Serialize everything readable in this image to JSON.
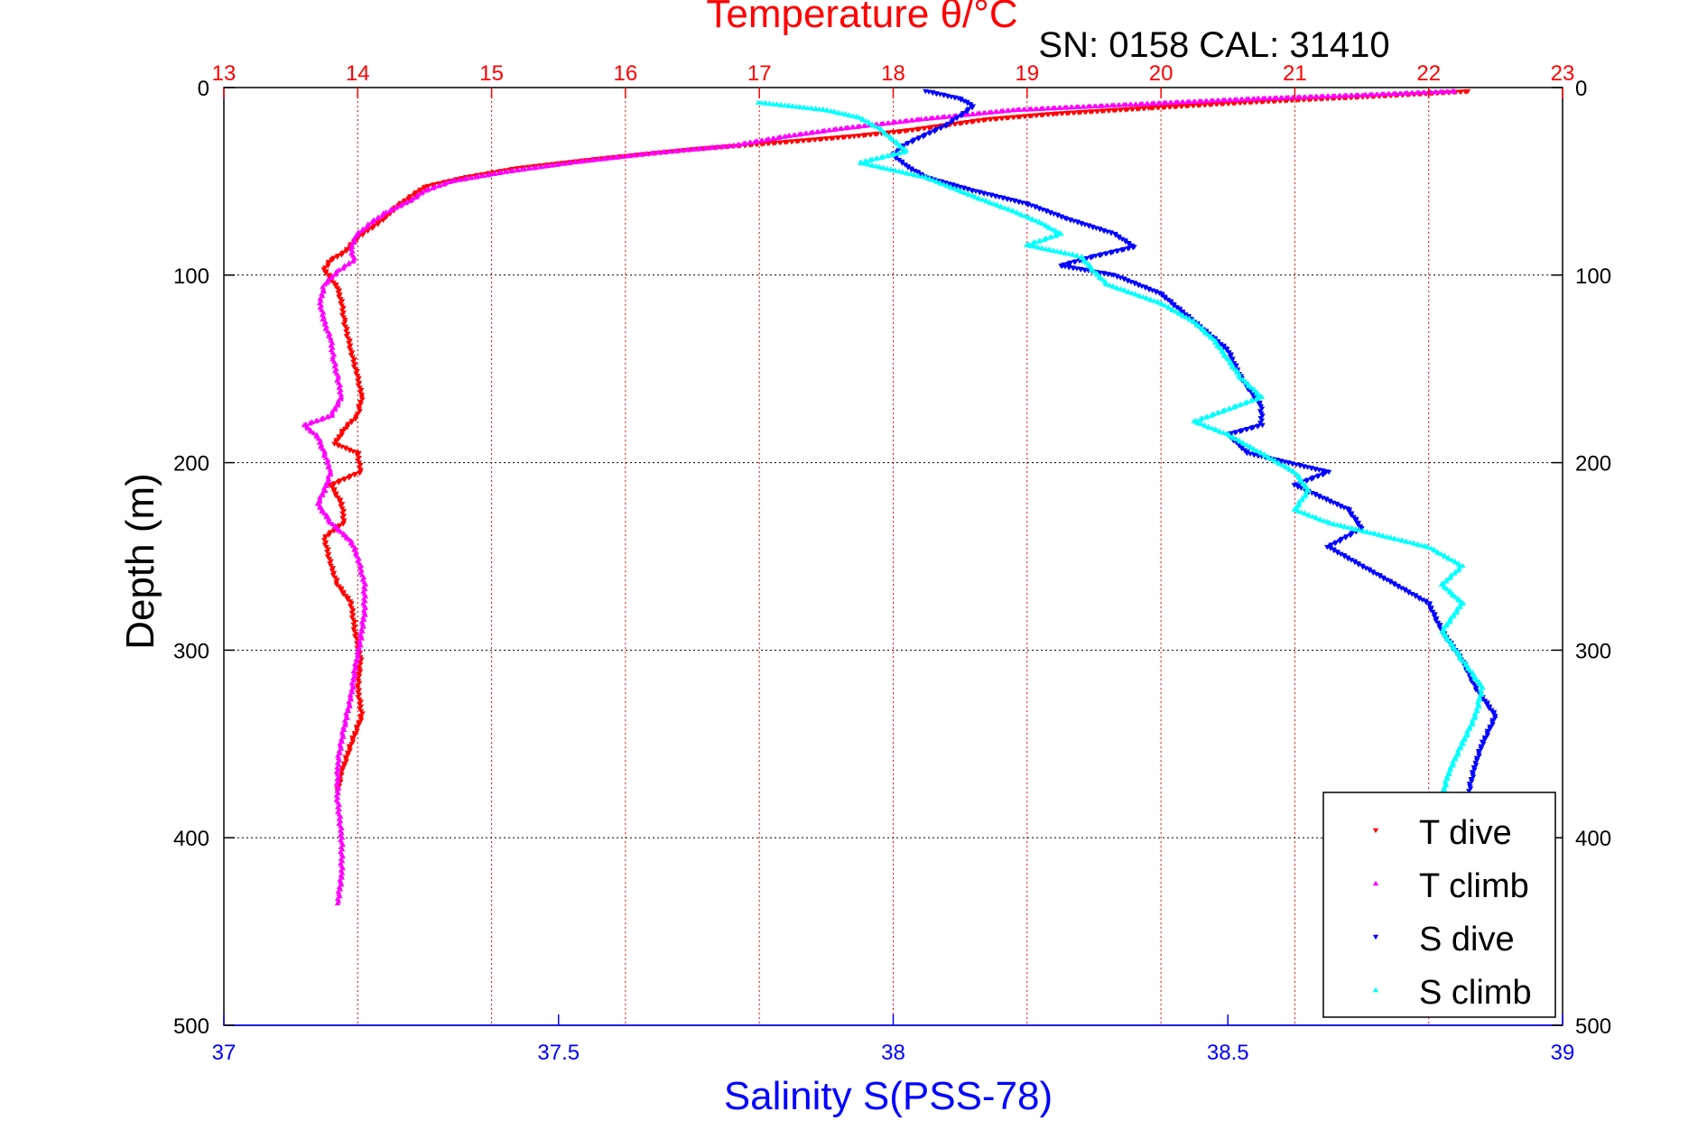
{
  "chart_data": {
    "type": "scatter",
    "title": "Temperature θ/°C",
    "subtitle": "SN: 0158  CAL: 31410",
    "ylabel": "Depth (m)",
    "xlabel": "Salinity S(PSS-78)",
    "x_top": {
      "label": "Temperature θ/°C",
      "lim": [
        13,
        23
      ],
      "ticks": [
        "13",
        "14",
        "15",
        "16",
        "17",
        "18",
        "19",
        "20",
        "21",
        "22",
        "23"
      ],
      "color": "#ff0000"
    },
    "x_bottom": {
      "label": "Salinity S(PSS-78)",
      "lim": [
        37,
        39
      ],
      "ticks": [
        "37",
        "37.5",
        "38",
        "38.5",
        "39"
      ],
      "color": "#0000ff"
    },
    "ylim": [
      0,
      500
    ],
    "y_reversed": true,
    "y_ticks": [
      "0",
      "100",
      "200",
      "300",
      "400",
      "500"
    ],
    "grid": true,
    "legend_position": "bottom-right",
    "series": [
      {
        "name": "T dive",
        "axis": "temperature",
        "color": "#ff0000",
        "marker": "▾",
        "points": [
          [
            22.3,
            2
          ],
          [
            21.5,
            5
          ],
          [
            20.6,
            8
          ],
          [
            19.9,
            11
          ],
          [
            19.2,
            14
          ],
          [
            18.7,
            17
          ],
          [
            18.4,
            20
          ],
          [
            18.1,
            23
          ],
          [
            17.7,
            26
          ],
          [
            17.2,
            29
          ],
          [
            16.5,
            33
          ],
          [
            15.8,
            38
          ],
          [
            15.2,
            43
          ],
          [
            14.8,
            48
          ],
          [
            14.5,
            53
          ],
          [
            14.4,
            58
          ],
          [
            14.3,
            63
          ],
          [
            14.2,
            70
          ],
          [
            14.1,
            75
          ],
          [
            14.0,
            80
          ],
          [
            13.9,
            88
          ],
          [
            13.8,
            92
          ],
          [
            13.75,
            97
          ],
          [
            13.78,
            100
          ],
          [
            13.85,
            107
          ],
          [
            13.88,
            115
          ],
          [
            13.9,
            125
          ],
          [
            13.95,
            140
          ],
          [
            14.0,
            155
          ],
          [
            14.03,
            165
          ],
          [
            14.0,
            175
          ],
          [
            13.9,
            182
          ],
          [
            13.83,
            190
          ],
          [
            14.0,
            195
          ],
          [
            14.02,
            205
          ],
          [
            13.8,
            212
          ],
          [
            13.88,
            222
          ],
          [
            13.9,
            232
          ],
          [
            13.75,
            240
          ],
          [
            13.8,
            255
          ],
          [
            13.85,
            265
          ],
          [
            13.95,
            275
          ],
          [
            13.98,
            290
          ],
          [
            14.02,
            305
          ],
          [
            14.0,
            320
          ],
          [
            14.03,
            335
          ],
          [
            13.95,
            350
          ],
          [
            13.88,
            365
          ],
          [
            13.85,
            375
          ]
        ]
      },
      {
        "name": "T climb",
        "axis": "temperature",
        "color": "#ff00ff",
        "marker": "▴",
        "points": [
          [
            22.2,
            2
          ],
          [
            21.5,
            4
          ],
          [
            20.7,
            6
          ],
          [
            19.8,
            9
          ],
          [
            18.9,
            12
          ],
          [
            18.2,
            17
          ],
          [
            17.6,
            22
          ],
          [
            17.2,
            26
          ],
          [
            16.8,
            31
          ],
          [
            16.2,
            35
          ],
          [
            15.6,
            40
          ],
          [
            15.1,
            45
          ],
          [
            14.7,
            50
          ],
          [
            14.5,
            55
          ],
          [
            14.4,
            60
          ],
          [
            14.2,
            67
          ],
          [
            14.1,
            72
          ],
          [
            14.0,
            78
          ],
          [
            13.95,
            85
          ],
          [
            13.97,
            92
          ],
          [
            13.85,
            98
          ],
          [
            13.75,
            105
          ],
          [
            13.72,
            115
          ],
          [
            13.75,
            125
          ],
          [
            13.8,
            135
          ],
          [
            13.82,
            145
          ],
          [
            13.85,
            155
          ],
          [
            13.88,
            165
          ],
          [
            13.8,
            175
          ],
          [
            13.6,
            180
          ],
          [
            13.7,
            186
          ],
          [
            13.75,
            195
          ],
          [
            13.8,
            205
          ],
          [
            13.75,
            215
          ],
          [
            13.7,
            222
          ],
          [
            13.8,
            232
          ],
          [
            13.95,
            242
          ],
          [
            14.0,
            250
          ],
          [
            14.05,
            265
          ],
          [
            14.05,
            280
          ],
          [
            14.02,
            295
          ],
          [
            13.98,
            310
          ],
          [
            13.95,
            325
          ],
          [
            13.9,
            340
          ],
          [
            13.85,
            360
          ],
          [
            13.85,
            380
          ],
          [
            13.88,
            400
          ],
          [
            13.88,
            420
          ],
          [
            13.85,
            435
          ]
        ]
      },
      {
        "name": "S dive",
        "axis": "salinity",
        "color": "#0000ff",
        "marker": "▾",
        "points": [
          [
            38.05,
            2
          ],
          [
            38.1,
            6
          ],
          [
            38.12,
            10
          ],
          [
            38.1,
            15
          ],
          [
            38.08,
            20
          ],
          [
            38.05,
            25
          ],
          [
            38.02,
            30
          ],
          [
            38.0,
            36
          ],
          [
            38.02,
            42
          ],
          [
            38.05,
            48
          ],
          [
            38.12,
            55
          ],
          [
            38.2,
            62
          ],
          [
            38.26,
            70
          ],
          [
            38.33,
            78
          ],
          [
            38.36,
            85
          ],
          [
            38.3,
            90
          ],
          [
            38.25,
            95
          ],
          [
            38.33,
            100
          ],
          [
            38.4,
            110
          ],
          [
            38.45,
            125
          ],
          [
            38.5,
            140
          ],
          [
            38.52,
            155
          ],
          [
            38.55,
            170
          ],
          [
            38.55,
            180
          ],
          [
            38.5,
            185
          ],
          [
            38.53,
            195
          ],
          [
            38.65,
            205
          ],
          [
            38.6,
            212
          ],
          [
            38.68,
            225
          ],
          [
            38.7,
            235
          ],
          [
            38.65,
            245
          ],
          [
            38.7,
            255
          ],
          [
            38.75,
            265
          ],
          [
            38.8,
            275
          ],
          [
            38.82,
            290
          ],
          [
            38.85,
            305
          ],
          [
            38.87,
            320
          ],
          [
            38.9,
            335
          ],
          [
            38.88,
            350
          ],
          [
            38.87,
            360
          ],
          [
            38.86,
            375
          ]
        ]
      },
      {
        "name": "S climb",
        "axis": "salinity",
        "color": "#00ffff",
        "marker": "▴",
        "points": [
          [
            37.8,
            8
          ],
          [
            37.9,
            12
          ],
          [
            37.95,
            16
          ],
          [
            37.98,
            22
          ],
          [
            38.0,
            28
          ],
          [
            38.02,
            34
          ],
          [
            37.95,
            40
          ],
          [
            38.05,
            48
          ],
          [
            38.12,
            58
          ],
          [
            38.18,
            66
          ],
          [
            38.22,
            72
          ],
          [
            38.25,
            78
          ],
          [
            38.2,
            84
          ],
          [
            38.28,
            90
          ],
          [
            38.3,
            98
          ],
          [
            38.32,
            105
          ],
          [
            38.4,
            115
          ],
          [
            38.45,
            125
          ],
          [
            38.48,
            135
          ],
          [
            38.5,
            145
          ],
          [
            38.52,
            155
          ],
          [
            38.55,
            165
          ],
          [
            38.45,
            178
          ],
          [
            38.5,
            185
          ],
          [
            38.55,
            195
          ],
          [
            38.6,
            205
          ],
          [
            38.62,
            215
          ],
          [
            38.6,
            225
          ],
          [
            38.65,
            232
          ],
          [
            38.72,
            238
          ],
          [
            38.8,
            245
          ],
          [
            38.85,
            255
          ],
          [
            38.82,
            265
          ],
          [
            38.85,
            275
          ],
          [
            38.82,
            290
          ],
          [
            38.85,
            305
          ],
          [
            38.88,
            320
          ],
          [
            38.87,
            335
          ],
          [
            38.85,
            350
          ],
          [
            38.83,
            365
          ],
          [
            38.82,
            378
          ]
        ]
      }
    ]
  }
}
